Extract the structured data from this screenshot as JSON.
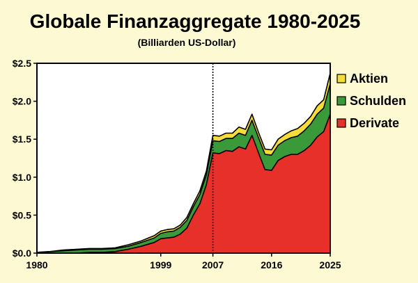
{
  "chart_data": {
    "type": "area",
    "stacked": true,
    "title": "Globale Finanzaggregate 1980-2025",
    "subtitle": "(Billiarden US-Dollar)",
    "xlabel": "",
    "ylabel": "",
    "xlim": [
      1980,
      2025
    ],
    "ylim": [
      0,
      2.5
    ],
    "x_ticks": [
      1980,
      1999,
      2007,
      2016,
      2025
    ],
    "y_ticks": [
      {
        "value": 0.0,
        "label": "$0.0"
      },
      {
        "value": 0.5,
        "label": "$0.5"
      },
      {
        "value": 1.0,
        "label": "$1.0"
      },
      {
        "value": 1.5,
        "label": "$1.5"
      },
      {
        "value": 2.0,
        "label": "$2.0"
      },
      {
        "value": 2.5,
        "label": "$2.5"
      }
    ],
    "annotation": {
      "type": "vertical-dotted-line",
      "x": 2007
    },
    "legend_position": "top-right",
    "x": [
      1980,
      1982,
      1984,
      1986,
      1988,
      1990,
      1992,
      1994,
      1996,
      1998,
      1999,
      2000,
      2001,
      2002,
      2003,
      2004,
      2005,
      2006,
      2007,
      2008,
      2009,
      2010,
      2011,
      2012,
      2013,
      2014,
      2015,
      2016,
      2017,
      2018,
      2019,
      2020,
      2021,
      2022,
      2023,
      2024,
      2025
    ],
    "series": [
      {
        "name": "Derivate",
        "color": "#e8302a",
        "values": [
          0.0,
          0.0,
          0.0,
          0.0,
          0.01,
          0.01,
          0.02,
          0.05,
          0.09,
          0.14,
          0.19,
          0.2,
          0.21,
          0.25,
          0.33,
          0.5,
          0.65,
          0.9,
          1.32,
          1.31,
          1.35,
          1.34,
          1.4,
          1.37,
          1.55,
          1.32,
          1.1,
          1.09,
          1.22,
          1.27,
          1.3,
          1.3,
          1.35,
          1.42,
          1.53,
          1.6,
          1.83
        ]
      },
      {
        "name": "Schulden",
        "color": "#3a9a3a",
        "values": [
          0.01,
          0.02,
          0.03,
          0.04,
          0.04,
          0.04,
          0.04,
          0.04,
          0.05,
          0.06,
          0.07,
          0.08,
          0.08,
          0.09,
          0.1,
          0.11,
          0.12,
          0.13,
          0.16,
          0.16,
          0.16,
          0.17,
          0.18,
          0.18,
          0.2,
          0.2,
          0.2,
          0.2,
          0.2,
          0.21,
          0.22,
          0.24,
          0.26,
          0.28,
          0.3,
          0.31,
          0.4
        ]
      },
      {
        "name": "Aktien",
        "color": "#f4dc3a",
        "values": [
          0.0,
          0.0,
          0.01,
          0.01,
          0.01,
          0.01,
          0.01,
          0.02,
          0.02,
          0.03,
          0.03,
          0.03,
          0.03,
          0.03,
          0.04,
          0.04,
          0.05,
          0.05,
          0.07,
          0.07,
          0.07,
          0.07,
          0.08,
          0.08,
          0.08,
          0.07,
          0.07,
          0.07,
          0.08,
          0.08,
          0.09,
          0.1,
          0.1,
          0.1,
          0.11,
          0.11,
          0.14
        ]
      }
    ],
    "legend_order": [
      "Aktien",
      "Schulden",
      "Derivate"
    ]
  }
}
